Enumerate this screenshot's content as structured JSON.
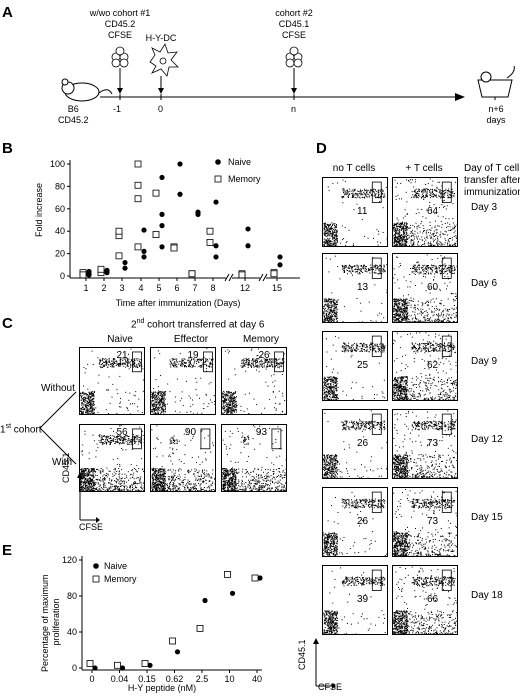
{
  "panel_labels": {
    "a": "A",
    "b": "B",
    "c": "C",
    "d": "D",
    "e": "E"
  },
  "panel_a": {
    "mouse_label": "B6\nCD45.2",
    "cohort1": "w/wo cohort #1\nCD45.2\nCFSE",
    "hydc": "H-Y-DC",
    "cohort2": "cohort #2\nCD45.1\nCFSE",
    "tick_labels": [
      "-1",
      "0",
      "n",
      "n+6\ndays"
    ]
  },
  "panel_b": {
    "ylabel": "Fold increase",
    "xlabel": "Time after immunization (Days)",
    "legend": [
      "Naive",
      "Memory"
    ],
    "yticks": [
      "0",
      "20",
      "40",
      "60",
      "80",
      "100"
    ],
    "xticks": [
      "1",
      "2",
      "3",
      "4",
      "5",
      "6",
      "7",
      "8",
      "12",
      "15"
    ]
  },
  "panel_c": {
    "title_main": "2",
    "title_sup": "nd",
    "title_rest": " cohort transferred at day 6",
    "columns": [
      "Naive",
      "Effector",
      "Memory"
    ],
    "rows": [
      "Without",
      "With"
    ],
    "row_group_label": "1",
    "row_group_sup": "st",
    "row_group_rest": " cohort",
    "gate_values": [
      [
        "21",
        "19",
        "26"
      ],
      [
        "56",
        "90",
        "93"
      ]
    ],
    "axis_y": "CD45.1",
    "axis_x": "CFSE"
  },
  "panel_d": {
    "columns": [
      "no T cells",
      "+ T cells"
    ],
    "header_right": "Day of T cell\ntransfer after\nimmunization",
    "days": [
      "Day 3",
      "Day 6",
      "Day 9",
      "Day 12",
      "Day 15",
      "Day 18"
    ],
    "gate_values": [
      [
        "11",
        "64"
      ],
      [
        "13",
        "60"
      ],
      [
        "25",
        "62"
      ],
      [
        "26",
        "73"
      ],
      [
        "26",
        "73"
      ],
      [
        "39",
        "66"
      ]
    ],
    "axis_y": "CD45.1",
    "axis_x": "CFSE"
  },
  "panel_e": {
    "ylabel": "Percentage of maximum\nproliferation",
    "xlabel": "H-Y peptide (nM)",
    "legend": [
      "Naive",
      "Memory"
    ],
    "yticks": [
      "0",
      "40",
      "80",
      "120"
    ],
    "xticks": [
      "0",
      "0.04",
      "0.15",
      "0.62",
      "2.5",
      "10",
      "40"
    ]
  },
  "chart_data": [
    {
      "type": "scatter",
      "ylabel": "Fold increase",
      "xlabel": "Time after immunization (Days)",
      "categories": [
        "1",
        "2",
        "3",
        "4",
        "5",
        "6",
        "7",
        "8",
        "12",
        "15"
      ],
      "ylim": [
        0,
        100
      ],
      "series": [
        {
          "name": "Naive",
          "marker": "filled-circle",
          "points": [
            [
              1,
              4
            ],
            [
              1,
              2
            ],
            [
              1,
              1
            ],
            [
              2,
              3
            ],
            [
              2,
              5
            ],
            [
              3,
              7
            ],
            [
              3,
              12
            ],
            [
              4,
              17
            ],
            [
              4,
              22
            ],
            [
              4,
              41
            ],
            [
              5,
              88
            ],
            [
              5,
              55
            ],
            [
              5,
              45
            ],
            [
              5,
              26
            ],
            [
              6,
              100
            ],
            [
              6,
              73
            ],
            [
              7,
              57
            ],
            [
              7,
              55
            ],
            [
              8,
              66
            ],
            [
              8,
              27
            ],
            [
              8,
              17
            ],
            [
              12,
              42
            ],
            [
              12,
              27
            ],
            [
              15,
              17
            ],
            [
              15,
              10
            ]
          ]
        },
        {
          "name": "Memory",
          "marker": "open-square",
          "points": [
            [
              1,
              3
            ],
            [
              1,
              1
            ],
            [
              2,
              3
            ],
            [
              2,
              6
            ],
            [
              3,
              18
            ],
            [
              3,
              36
            ],
            [
              3,
              40
            ],
            [
              4,
              100
            ],
            [
              4,
              81
            ],
            [
              4,
              69
            ],
            [
              4,
              26
            ],
            [
              5,
              74
            ],
            [
              5,
              37
            ],
            [
              6,
              26
            ],
            [
              6,
              25
            ],
            [
              7,
              2
            ],
            [
              7,
              2
            ],
            [
              8,
              40
            ],
            [
              8,
              30
            ],
            [
              12,
              2
            ],
            [
              12,
              1
            ],
            [
              15,
              3
            ],
            [
              15,
              2
            ]
          ]
        }
      ]
    },
    {
      "type": "scatter",
      "ylabel": "Percentage of maximum\nproliferation",
      "xlabel": "H-Y peptide (nM)",
      "categories": [
        "0",
        "0.04",
        "0.15",
        "0.62",
        "2.5",
        "10",
        "40"
      ],
      "ylim": [
        0,
        120
      ],
      "series": [
        {
          "name": "Naive",
          "marker": "filled-circle",
          "points": [
            [
              "0",
              0
            ],
            [
              "0.04",
              0
            ],
            [
              "0.15",
              3
            ],
            [
              "0.62",
              18
            ],
            [
              "2.5",
              75
            ],
            [
              "10",
              83
            ],
            [
              "40",
              100
            ]
          ]
        },
        {
          "name": "Memory",
          "marker": "open-square",
          "points": [
            [
              "0",
              5
            ],
            [
              "0.04",
              3
            ],
            [
              "0.15",
              5
            ],
            [
              "0.62",
              30
            ],
            [
              "2.5",
              44
            ],
            [
              "10",
              104
            ],
            [
              "40",
              100
            ]
          ]
        }
      ]
    }
  ]
}
